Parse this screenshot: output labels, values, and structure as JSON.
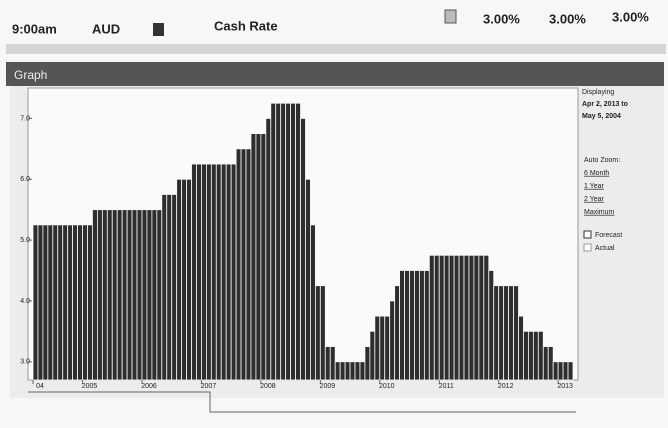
{
  "header": {
    "time": "9:00am",
    "currency": "AUD",
    "event": "Cash Rate",
    "actual": "3.00%",
    "forecast": "3.00%",
    "previous": "3.00%"
  },
  "panel": {
    "title": "Graph",
    "displaying": "Displaying",
    "range_from": "Apr 2, 2013 to",
    "range_to": "May 5, 2004",
    "zoom_label": "Auto Zoom:",
    "zoom_options": [
      "6 Month",
      "1 Year",
      "2 Year",
      "Maximum"
    ],
    "toggles": [
      "Forecast",
      "Actual"
    ]
  },
  "chart_data": {
    "type": "bar",
    "color": "#2e2e2e",
    "categories": [
      "04",
      null,
      null,
      null,
      null,
      null,
      null,
      null,
      null,
      null,
      "2005",
      null,
      null,
      null,
      null,
      null,
      null,
      null,
      null,
      null,
      null,
      null,
      "2006",
      null,
      null,
      null,
      null,
      null,
      null,
      null,
      null,
      null,
      null,
      null,
      "2007",
      null,
      null,
      null,
      null,
      null,
      null,
      null,
      null,
      null,
      null,
      null,
      "2008",
      null,
      null,
      null,
      null,
      null,
      null,
      null,
      null,
      null,
      null,
      null,
      "2009",
      null,
      null,
      null,
      null,
      null,
      null,
      null,
      null,
      null,
      null,
      null,
      "2010",
      null,
      null,
      null,
      null,
      null,
      null,
      null,
      null,
      null,
      null,
      null,
      "2011",
      null,
      null,
      null,
      null,
      null,
      null,
      null,
      null,
      null,
      null,
      null,
      "2012",
      null,
      null,
      null,
      null,
      null,
      null,
      null,
      null,
      null,
      null,
      null,
      "2013",
      null,
      null
    ],
    "values": [
      5.25,
      5.25,
      5.25,
      5.25,
      5.25,
      5.25,
      5.25,
      5.25,
      5.25,
      5.25,
      5.25,
      5.25,
      5.5,
      5.5,
      5.5,
      5.5,
      5.5,
      5.5,
      5.5,
      5.5,
      5.5,
      5.5,
      5.5,
      5.5,
      5.5,
      5.5,
      5.75,
      5.75,
      5.75,
      6,
      6,
      6,
      6.25,
      6.25,
      6.25,
      6.25,
      6.25,
      6.25,
      6.25,
      6.25,
      6.25,
      6.5,
      6.5,
      6.5,
      6.75,
      6.75,
      6.75,
      7,
      7.25,
      7.25,
      7.25,
      7.25,
      7.25,
      7.25,
      7,
      6,
      5.25,
      4.25,
      4.25,
      3.25,
      3.25,
      3,
      3,
      3,
      3,
      3,
      3,
      3.25,
      3.5,
      3.75,
      3.75,
      3.75,
      4,
      4.25,
      4.5,
      4.5,
      4.5,
      4.5,
      4.5,
      4.5,
      4.75,
      4.75,
      4.75,
      4.75,
      4.75,
      4.75,
      4.75,
      4.75,
      4.75,
      4.75,
      4.75,
      4.75,
      4.5,
      4.25,
      4.25,
      4.25,
      4.25,
      4.25,
      3.75,
      3.5,
      3.5,
      3.5,
      3.5,
      3.25,
      3.25,
      3,
      3,
      3,
      3
    ],
    "ylim": [
      2.7,
      7.5
    ],
    "yticks": [
      {
        "value": 3,
        "label": "3.0"
      },
      {
        "value": 4,
        "label": "4.0"
      },
      {
        "value": 5,
        "label": "5.0"
      },
      {
        "value": 6,
        "label": "6.0"
      },
      {
        "value": 7,
        "label": "7.0"
      }
    ]
  }
}
